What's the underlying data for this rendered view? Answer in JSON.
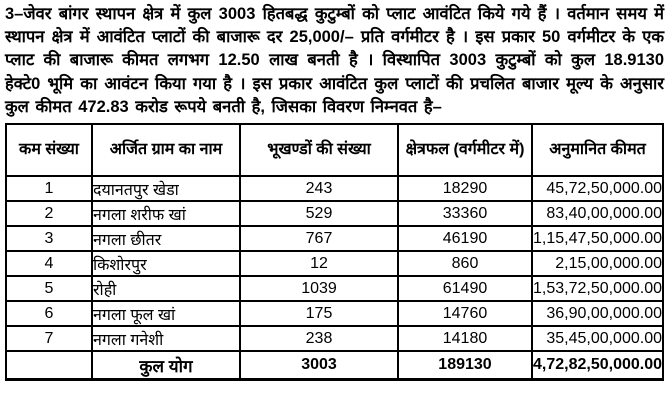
{
  "page": {
    "paragraph": "3–जेवर बांगर स्थापन क्षेत्र में कुल 3003 हितबद्ध कुटुम्बों को प्लाट आवंटित किये गये हैं । वर्तमान समय में स्थापन क्षेत्र में आवंटित प्लाटों की बाजारू दर 25,000/– प्रति वर्गमीटर है । इस प्रकार 50 वर्गमीटर के एक प्लाट की बाजारू कीमत लगभग 12.50 लाख बनती है । विस्थापित 3003 कुटुम्बों को कुल 18.9130 हेक्टे0 भूमि का आवंटन किया गया है । इस प्रकार आवंटित कुल प्लाटों की प्रचलित बाजार मूल्य के अनुसार कुल कीमत 472.83 करोड रूपये बनती है, जिसका विवरण निम्नवत है–"
  },
  "table": {
    "headers": {
      "serial": "कम संख्या",
      "village": "अर्जित ग्राम का नाम",
      "plots": "भूखण्डों की संख्या",
      "area": "क्षेत्रफल (वर्गमीटर में)",
      "price": "अनुमानित कीमत"
    },
    "rows": [
      {
        "serial": "1",
        "village": "दयानतपुर खेडा",
        "plots": "243",
        "area": "18290",
        "price": "45,72,50,000.00"
      },
      {
        "serial": "2",
        "village": "नगला शरीफ खां",
        "plots": "529",
        "area": "33360",
        "price": "83,40,00,000.00"
      },
      {
        "serial": "3",
        "village": "नगला छीतर",
        "plots": "767",
        "area": "46190",
        "price": "1,15,47,50,000.00"
      },
      {
        "serial": "4",
        "village": "किशोरपुर",
        "plots": "12",
        "area": "860",
        "price": "2,15,00,000.00"
      },
      {
        "serial": "5",
        "village": "रोही",
        "plots": "1039",
        "area": "61490",
        "price": "1,53,72,50,000.00"
      },
      {
        "serial": "6",
        "village": "नगला फूल खां",
        "plots": "175",
        "area": "14760",
        "price": "36,90,00,000.00"
      },
      {
        "serial": "7",
        "village": "नगला गनेशी",
        "plots": "238",
        "area": "14180",
        "price": "35,45,00,000.00"
      }
    ],
    "total": {
      "serial": "",
      "label": "कुल योग",
      "plots": "3003",
      "area": "189130",
      "price": "4,72,82,50,000.00"
    }
  }
}
